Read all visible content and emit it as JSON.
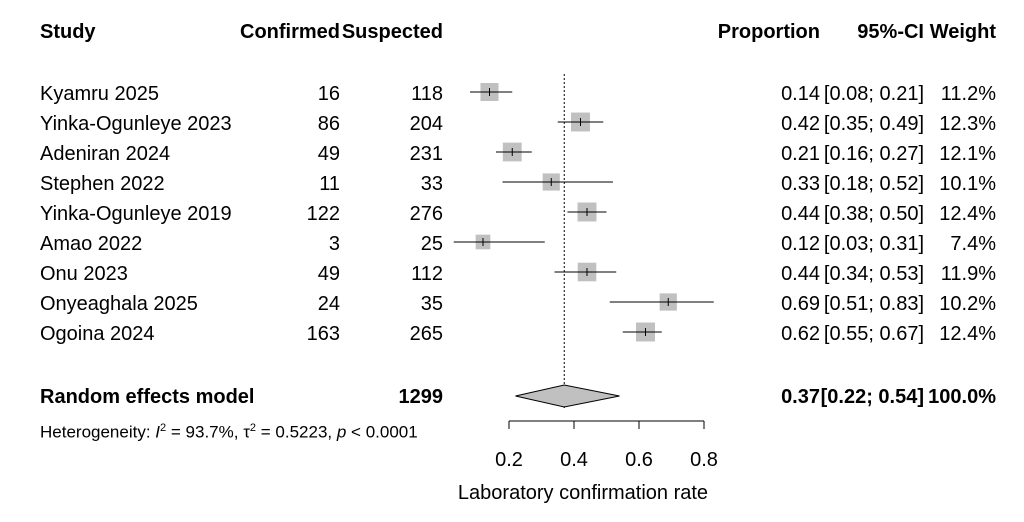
{
  "header": {
    "study": "Study",
    "confirmed": "Confirmed",
    "suspected": "Suspected",
    "proportion": "Proportion",
    "ci": "95%-CI",
    "weight": "Weight"
  },
  "rows": [
    {
      "study": "Kyamru 2025",
      "confirmed": "16",
      "suspected": "118",
      "prop": "0.14",
      "ci": "[0.08; 0.21]",
      "weight": "11.2%"
    },
    {
      "study": "Yinka-Ogunleye 2023",
      "confirmed": "86",
      "suspected": "204",
      "prop": "0.42",
      "ci": "[0.35; 0.49]",
      "weight": "12.3%"
    },
    {
      "study": "Adeniran 2024",
      "confirmed": "49",
      "suspected": "231",
      "prop": "0.21",
      "ci": "[0.16; 0.27]",
      "weight": "12.1%"
    },
    {
      "study": "Stephen 2022",
      "confirmed": "11",
      "suspected": "33",
      "prop": "0.33",
      "ci": "[0.18; 0.52]",
      "weight": "10.1%"
    },
    {
      "study": "Yinka-Ogunleye 2019",
      "confirmed": "122",
      "suspected": "276",
      "prop": "0.44",
      "ci": "[0.38; 0.50]",
      "weight": "12.4%"
    },
    {
      "study": "Amao 2022",
      "confirmed": "3",
      "suspected": "25",
      "prop": "0.12",
      "ci": "[0.03; 0.31]",
      "weight": "7.4%"
    },
    {
      "study": "Onu 2023",
      "confirmed": "49",
      "suspected": "112",
      "prop": "0.44",
      "ci": "[0.34; 0.53]",
      "weight": "11.9%"
    },
    {
      "study": "Onyeaghala 2025",
      "confirmed": "24",
      "suspected": "35",
      "prop": "0.69",
      "ci": "[0.51; 0.83]",
      "weight": "10.2%"
    },
    {
      "study": "Ogoina 2024",
      "confirmed": "163",
      "suspected": "265",
      "prop": "0.62",
      "ci": "[0.55; 0.67]",
      "weight": "12.4%"
    }
  ],
  "summary": {
    "label": "Random effects model",
    "suspected": "1299",
    "prop": "0.37",
    "ci": "[0.22; 0.54]",
    "weight": "100.0%"
  },
  "heterogeneity": {
    "prefix": "Heterogeneity: ",
    "i2_symbol": "I",
    "i2_value": " = 93.7%, ",
    "tau2_symbol": "τ",
    "tau2_value": " = 0.5223, ",
    "p_symbol": "p",
    "p_value": " < 0.0001"
  },
  "colors": {
    "box": "#c0c0c0",
    "line": "#000000",
    "diamond": "#c0c0c0"
  },
  "chart_data": {
    "type": "forest",
    "xlabel": "Laboratory confirmation rate",
    "xticks": [
      "0.2",
      "0.4",
      "0.6",
      "0.8"
    ],
    "xlim": [
      0.15,
      0.85
    ],
    "reference_line": 0.37,
    "studies": [
      {
        "name": "Kyamru 2025",
        "est": 0.14,
        "lo": 0.08,
        "hi": 0.21,
        "weight": 11.2
      },
      {
        "name": "Yinka-Ogunleye 2023",
        "est": 0.42,
        "lo": 0.35,
        "hi": 0.49,
        "weight": 12.3
      },
      {
        "name": "Adeniran 2024",
        "est": 0.21,
        "lo": 0.16,
        "hi": 0.27,
        "weight": 12.1
      },
      {
        "name": "Stephen 2022",
        "est": 0.33,
        "lo": 0.18,
        "hi": 0.52,
        "weight": 10.1
      },
      {
        "name": "Yinka-Ogunleye 2019",
        "est": 0.44,
        "lo": 0.38,
        "hi": 0.5,
        "weight": 12.4
      },
      {
        "name": "Amao 2022",
        "est": 0.12,
        "lo": 0.03,
        "hi": 0.31,
        "weight": 7.4
      },
      {
        "name": "Onu 2023",
        "est": 0.44,
        "lo": 0.34,
        "hi": 0.53,
        "weight": 11.9
      },
      {
        "name": "Onyeaghala 2025",
        "est": 0.69,
        "lo": 0.51,
        "hi": 0.83,
        "weight": 10.2
      },
      {
        "name": "Ogoina 2024",
        "est": 0.62,
        "lo": 0.55,
        "hi": 0.67,
        "weight": 12.4
      }
    ],
    "pooled": {
      "est": 0.37,
      "lo": 0.22,
      "hi": 0.54
    }
  }
}
